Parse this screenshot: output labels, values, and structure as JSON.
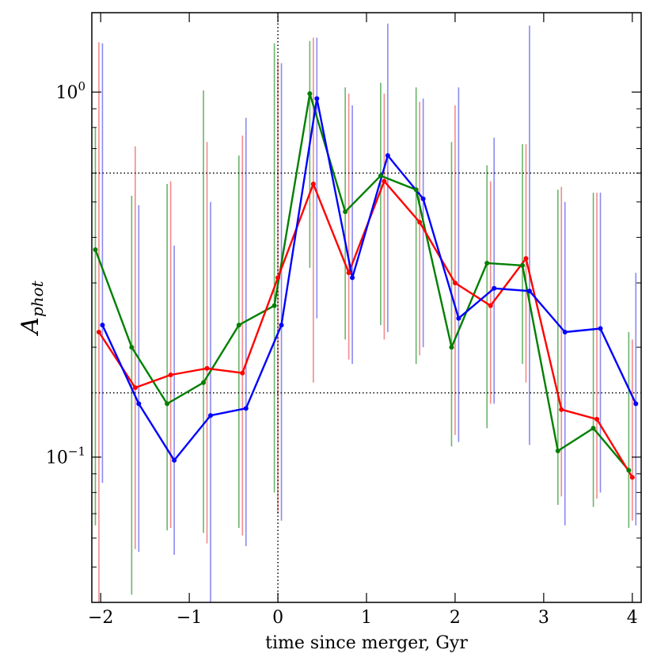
{
  "chart_data": {
    "type": "line",
    "title": "",
    "xlabel": "time since merger, Gyr",
    "ylabel_main": "A",
    "ylabel_sub": "phot",
    "yscale": "log",
    "xlim": [
      -2.1,
      4.1
    ],
    "ylim": [
      0.04,
      1.65
    ],
    "x_ticks": [
      -2,
      -1,
      0,
      1,
      2,
      3,
      4
    ],
    "x_tick_labels": [
      "−2",
      "−1",
      "0",
      "1",
      "2",
      "3",
      "4"
    ],
    "y_major_ticks": [
      0.1,
      1.0
    ],
    "y_tick_labels": [
      {
        "base": "10",
        "exp": "−1"
      },
      {
        "base": "10",
        "exp": "0"
      }
    ],
    "y_minor_ticks": [
      0.05,
      0.06,
      0.07,
      0.08,
      0.09,
      0.2,
      0.3,
      0.4,
      0.5,
      0.6,
      0.7,
      0.8,
      0.9
    ],
    "reference_lines": {
      "vertical_x": 0,
      "horizontal_y": [
        0.6,
        0.15
      ],
      "style": "dotted"
    },
    "grid": false,
    "legend": "none",
    "series": [
      {
        "color": "#008000",
        "errcolor": "#6ab56a",
        "points": [
          {
            "x": -2.06,
            "y": 0.37,
            "lo": 0.065,
            "hi": 0.8
          },
          {
            "x": -1.65,
            "y": 0.2,
            "lo": 0.042,
            "hi": 0.52
          },
          {
            "x": -1.25,
            "y": 0.14,
            "lo": 0.063,
            "hi": 0.56
          },
          {
            "x": -0.84,
            "y": 0.16,
            "lo": 0.062,
            "hi": 1.01
          },
          {
            "x": -0.44,
            "y": 0.23,
            "lo": 0.064,
            "hi": 0.67
          },
          {
            "x": -0.04,
            "y": 0.26,
            "lo": 0.08,
            "hi": 1.36
          },
          {
            "x": 0.36,
            "y": 0.99,
            "lo": 0.33,
            "hi": 1.38
          },
          {
            "x": 0.76,
            "y": 0.47,
            "lo": 0.21,
            "hi": 1.03
          },
          {
            "x": 1.16,
            "y": 0.59,
            "lo": 0.23,
            "hi": 1.06
          },
          {
            "x": 1.56,
            "y": 0.54,
            "lo": 0.18,
            "hi": 1.03
          },
          {
            "x": 1.96,
            "y": 0.2,
            "lo": 0.107,
            "hi": 0.73
          },
          {
            "x": 2.36,
            "y": 0.34,
            "lo": 0.12,
            "hi": 0.63
          },
          {
            "x": 2.76,
            "y": 0.335,
            "lo": 0.18,
            "hi": 0.72
          },
          {
            "x": 3.16,
            "y": 0.104,
            "lo": 0.074,
            "hi": 0.54
          },
          {
            "x": 3.56,
            "y": 0.12,
            "lo": 0.073,
            "hi": 0.53
          },
          {
            "x": 3.96,
            "y": 0.092,
            "lo": 0.064,
            "hi": 0.22
          }
        ]
      },
      {
        "color": "#ff0000",
        "errcolor": "#f28b8b",
        "points": [
          {
            "x": -2.02,
            "y": 0.22,
            "lo": 0.04,
            "hi": 1.37
          },
          {
            "x": -1.61,
            "y": 0.155,
            "lo": 0.056,
            "hi": 0.71
          },
          {
            "x": -1.21,
            "y": 0.168,
            "lo": 0.064,
            "hi": 0.57
          },
          {
            "x": -0.8,
            "y": 0.175,
            "lo": 0.058,
            "hi": 0.73
          },
          {
            "x": -0.4,
            "y": 0.17,
            "lo": 0.061,
            "hi": 0.76
          },
          {
            "x": 0.0,
            "y": 0.31,
            "lo": 0.07,
            "hi": 1.22
          },
          {
            "x": 0.4,
            "y": 0.56,
            "lo": 0.16,
            "hi": 1.41
          },
          {
            "x": 0.8,
            "y": 0.32,
            "lo": 0.185,
            "hi": 0.99
          },
          {
            "x": 1.2,
            "y": 0.57,
            "lo": 0.21,
            "hi": 0.99
          },
          {
            "x": 1.6,
            "y": 0.44,
            "lo": 0.19,
            "hi": 0.94
          },
          {
            "x": 2.0,
            "y": 0.3,
            "lo": 0.115,
            "hi": 0.92
          },
          {
            "x": 2.4,
            "y": 0.26,
            "lo": 0.14,
            "hi": 0.57
          },
          {
            "x": 2.8,
            "y": 0.35,
            "lo": 0.16,
            "hi": 0.72
          },
          {
            "x": 3.2,
            "y": 0.135,
            "lo": 0.078,
            "hi": 0.55
          },
          {
            "x": 3.6,
            "y": 0.127,
            "lo": 0.077,
            "hi": 0.53
          },
          {
            "x": 4.0,
            "y": 0.088,
            "lo": 0.067,
            "hi": 0.21
          }
        ]
      },
      {
        "color": "#0000ff",
        "errcolor": "#8a8af2",
        "points": [
          {
            "x": -1.98,
            "y": 0.23,
            "lo": 0.085,
            "hi": 1.36
          },
          {
            "x": -1.57,
            "y": 0.14,
            "lo": 0.055,
            "hi": 0.49
          },
          {
            "x": -1.17,
            "y": 0.098,
            "lo": 0.054,
            "hi": 0.38
          },
          {
            "x": -0.76,
            "y": 0.13,
            "lo": 0.04,
            "hi": 0.5
          },
          {
            "x": -0.36,
            "y": 0.136,
            "lo": 0.057,
            "hi": 0.85
          },
          {
            "x": 0.04,
            "y": 0.23,
            "lo": 0.067,
            "hi": 1.2
          },
          {
            "x": 0.44,
            "y": 0.96,
            "lo": 0.24,
            "hi": 1.41
          },
          {
            "x": 0.84,
            "y": 0.31,
            "lo": 0.18,
            "hi": 0.92
          },
          {
            "x": 1.24,
            "y": 0.67,
            "lo": 0.22,
            "hi": 1.54
          },
          {
            "x": 1.64,
            "y": 0.51,
            "lo": 0.2,
            "hi": 0.96
          },
          {
            "x": 2.04,
            "y": 0.24,
            "lo": 0.11,
            "hi": 1.03
          },
          {
            "x": 2.44,
            "y": 0.29,
            "lo": 0.14,
            "hi": 0.75
          },
          {
            "x": 2.84,
            "y": 0.285,
            "lo": 0.108,
            "hi": 1.52
          },
          {
            "x": 3.24,
            "y": 0.22,
            "lo": 0.065,
            "hi": 0.5
          },
          {
            "x": 3.64,
            "y": 0.225,
            "lo": 0.08,
            "hi": 0.53
          },
          {
            "x": 4.04,
            "y": 0.14,
            "lo": 0.065,
            "hi": 0.32
          }
        ]
      }
    ]
  }
}
